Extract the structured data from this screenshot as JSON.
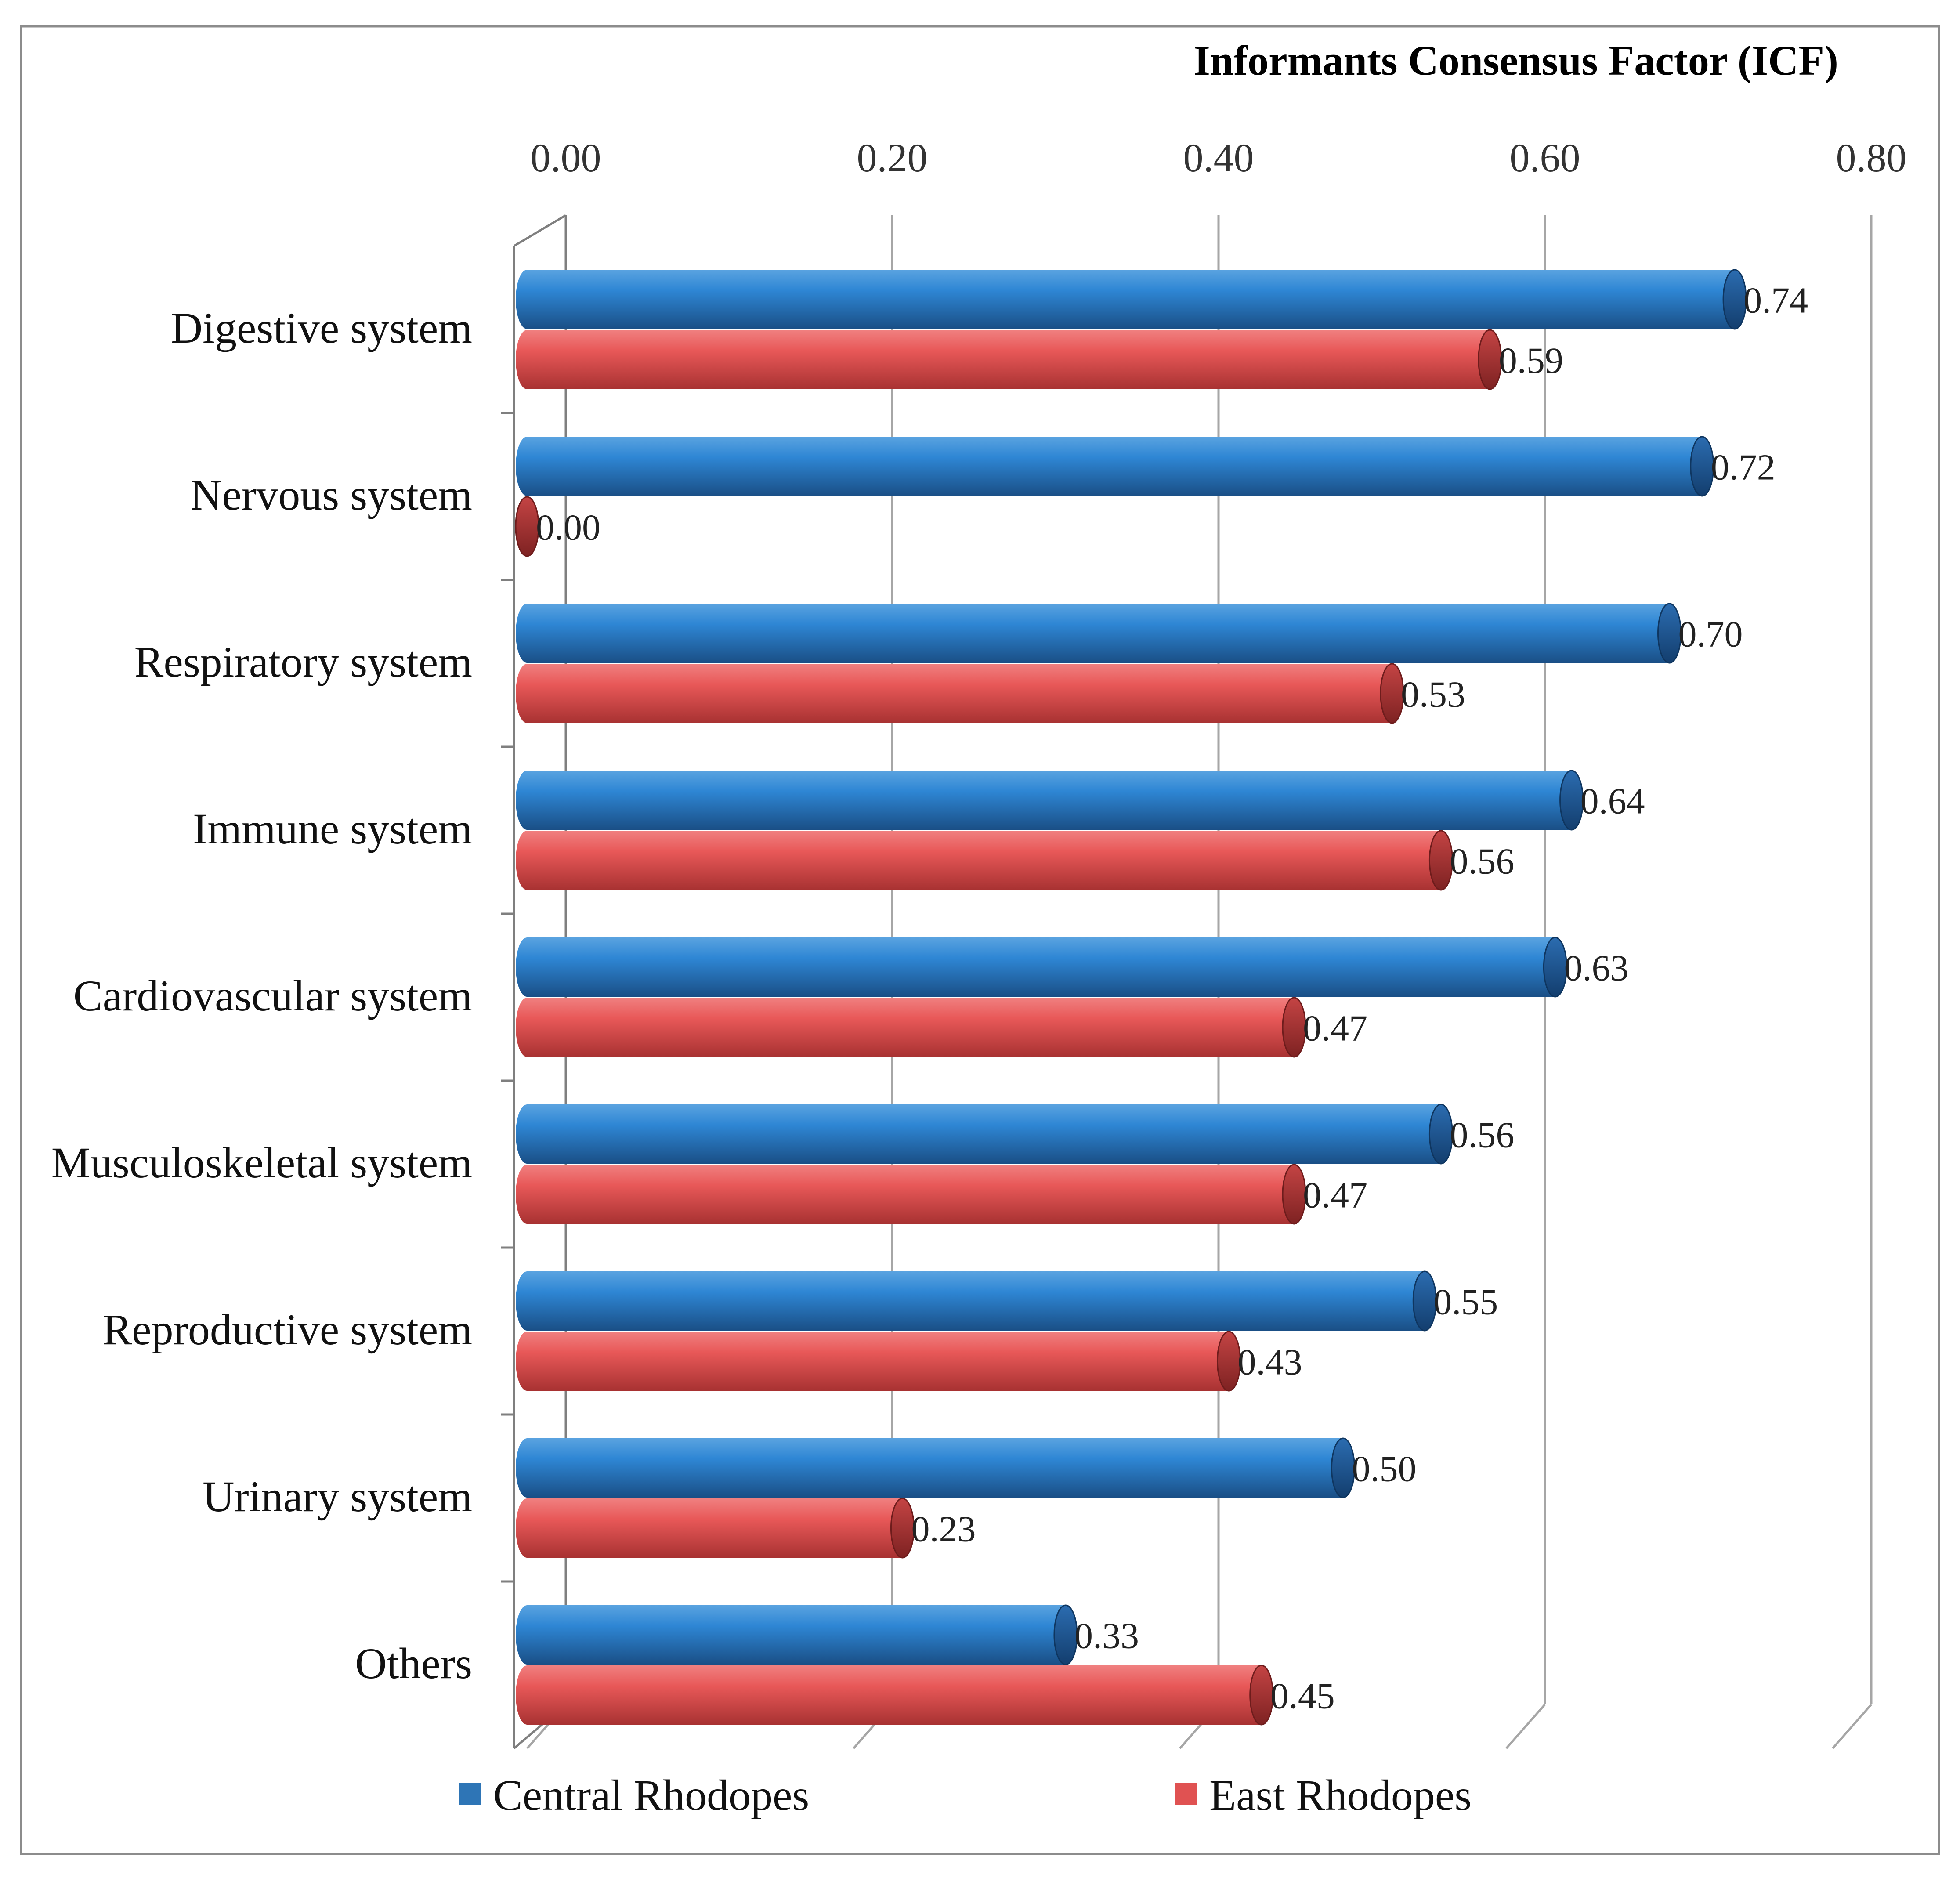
{
  "chart_data": {
    "type": "bar",
    "orientation": "horizontal",
    "title": "Informants Consensus Factor (ICF)",
    "xlim": [
      0,
      0.8
    ],
    "x_ticks": [
      "0.00",
      "0.20",
      "0.40",
      "0.60",
      "0.80"
    ],
    "categories": [
      "Digestive system",
      "Nervous system",
      "Respiratory system",
      "Immune system",
      "Cardiovascular system",
      "Musculoskeletal system",
      "Reproductive system",
      "Urinary system",
      "Others"
    ],
    "series": [
      {
        "name": "Central Rhodopes",
        "color": "#2e75b6",
        "values": [
          0.74,
          0.72,
          0.7,
          0.64,
          0.63,
          0.56,
          0.55,
          0.5,
          0.33
        ],
        "labels": [
          "0.74",
          "0.72",
          "0.70",
          "0.64",
          "0.63",
          "0.56",
          "0.55",
          "0.50",
          "0.33"
        ]
      },
      {
        "name": "East Rhodopes",
        "color": "#e05252",
        "values": [
          0.59,
          0.0,
          0.53,
          0.56,
          0.47,
          0.47,
          0.43,
          0.23,
          0.45
        ],
        "labels": [
          "0.59",
          "0.00",
          "0.53",
          "0.56",
          "0.47",
          "0.47",
          "0.43",
          "0.23",
          "0.45"
        ]
      }
    ],
    "legend_position": "bottom",
    "grid": true
  }
}
